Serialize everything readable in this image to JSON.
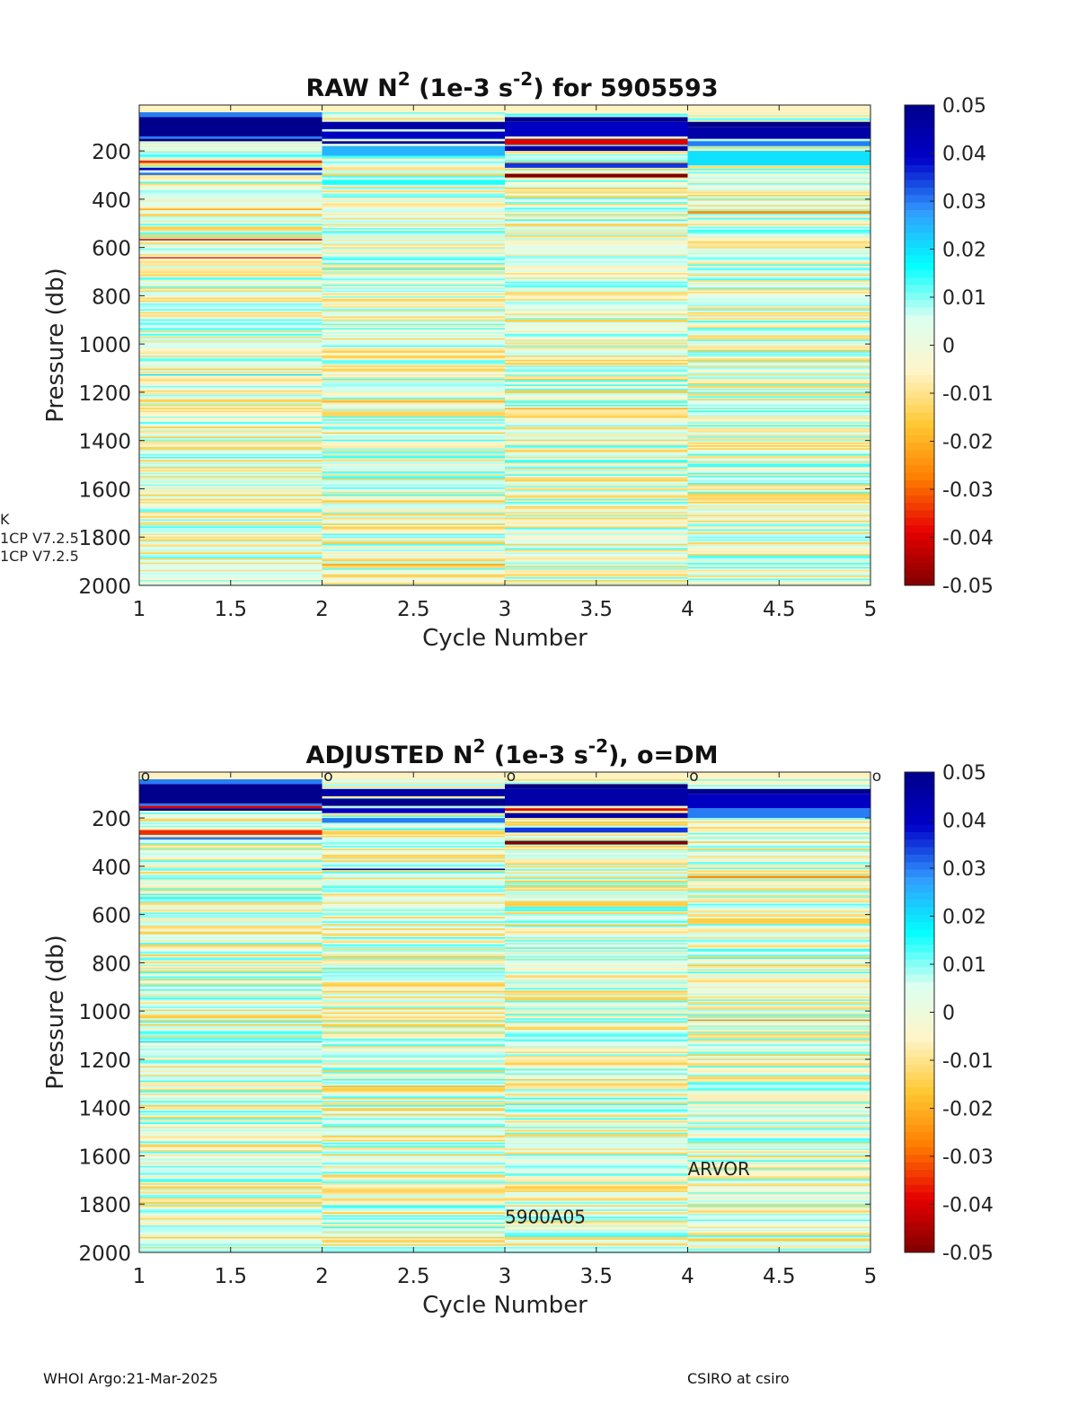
{
  "footer": {
    "left": "WHOI Argo:21-Mar-2025",
    "right": "CSIRO at csiro"
  },
  "side_labels": [
    "K",
    "1CP V7.2.5",
    "1CP V7.2.5"
  ],
  "colors": {
    "colormap": [
      "#800000",
      "#e60000",
      "#ff7d00",
      "#ffc832",
      "#fff5c8",
      "#dcfff0",
      "#00ffff",
      "#329bff",
      "#0000c8",
      "#00008c"
    ]
  },
  "chart_data": [
    {
      "type": "heatmap",
      "title_prefix": "RAW N",
      "title_sup": "2",
      "title_mid": " (1e-3 s",
      "title_sup2": "-2",
      "title_suffix": ") for 5905593",
      "xlabel": "Cycle Number",
      "ylabel": "Pressure (db)",
      "xlim": [
        1,
        5
      ],
      "ylim": [
        2000,
        10
      ],
      "y_reversed": true,
      "xticks": [
        "1",
        "1.5",
        "2",
        "2.5",
        "3",
        "3.5",
        "4",
        "4.5",
        "5"
      ],
      "yticks": [
        "200",
        "400",
        "600",
        "800",
        "1000",
        "1200",
        "1400",
        "1600",
        "1800",
        "2000"
      ],
      "colorbar": {
        "min": -0.05,
        "max": 0.05,
        "ticks": [
          "0.05",
          "0.04",
          "0.03",
          "0.02",
          "0.01",
          "0",
          "-0.01",
          "-0.02",
          "-0.03",
          "-0.04",
          "-0.05"
        ]
      },
      "cycles": [
        {
          "cycle": 1,
          "strong_layers": [
            [
              40,
              60,
              0.03
            ],
            [
              60,
              140,
              0.05
            ],
            [
              140,
              150,
              0.03
            ],
            [
              150,
              160,
              0.05
            ],
            [
              240,
              250,
              -0.035
            ],
            [
              270,
              280,
              0.04
            ],
            [
              290,
              300,
              0.03
            ],
            [
              440,
              445,
              -0.02
            ],
            [
              565,
              570,
              -0.04
            ],
            [
              640,
              645,
              -0.035
            ],
            [
              1125,
              1130,
              0.02
            ]
          ]
        },
        {
          "cycle": 2,
          "strong_layers": [
            [
              80,
              110,
              0.045
            ],
            [
              120,
              150,
              0.04
            ],
            [
              160,
              170,
              0.05
            ],
            [
              180,
              220,
              0.025
            ],
            [
              320,
              340,
              0.015
            ],
            [
              1235,
              1240,
              -0.02
            ],
            [
              1910,
              1920,
              -0.02
            ]
          ]
        },
        {
          "cycle": 3,
          "strong_layers": [
            [
              60,
              80,
              0.05
            ],
            [
              80,
              140,
              0.04
            ],
            [
              150,
              175,
              -0.04
            ],
            [
              180,
              200,
              0.045
            ],
            [
              250,
              270,
              0.035
            ],
            [
              295,
              310,
              -0.05
            ],
            [
              1265,
              1270,
              -0.02
            ]
          ]
        },
        {
          "cycle": 4,
          "strong_layers": [
            [
              80,
              100,
              0.05
            ],
            [
              100,
              150,
              0.045
            ],
            [
              160,
              180,
              0.03
            ],
            [
              200,
              260,
              0.02
            ],
            [
              450,
              460,
              -0.025
            ]
          ]
        }
      ],
      "dm_markers": []
    },
    {
      "type": "heatmap",
      "title_prefix": "ADJUSTED N",
      "title_sup": "2",
      "title_mid": " (1e-3 s",
      "title_sup2": "-2",
      "title_suffix": "), o=DM",
      "xlabel": "Cycle Number",
      "ylabel": "Pressure (db)",
      "xlim": [
        1,
        5
      ],
      "ylim": [
        2000,
        10
      ],
      "y_reversed": true,
      "xticks": [
        "1",
        "1.5",
        "2",
        "2.5",
        "3",
        "3.5",
        "4",
        "4.5",
        "5"
      ],
      "yticks": [
        "200",
        "400",
        "600",
        "800",
        "1000",
        "1200",
        "1400",
        "1600",
        "1800",
        "2000"
      ],
      "colorbar": {
        "min": -0.05,
        "max": 0.05,
        "ticks": [
          "0.05",
          "0.04",
          "0.03",
          "0.02",
          "0.01",
          "0",
          "-0.01",
          "-0.02",
          "-0.03",
          "-0.04",
          "-0.05"
        ]
      },
      "cycles": [
        {
          "cycle": 1,
          "strong_layers": [
            [
              40,
              60,
              0.03
            ],
            [
              60,
              140,
              0.05
            ],
            [
              140,
              150,
              0.03
            ],
            [
              150,
              160,
              -0.04
            ],
            [
              160,
              170,
              0.05
            ],
            [
              250,
              270,
              -0.035
            ],
            [
              280,
              290,
              0.03
            ],
            [
              1125,
              1130,
              0.02
            ]
          ]
        },
        {
          "cycle": 2,
          "strong_layers": [
            [
              80,
              110,
              0.045
            ],
            [
              120,
              150,
              0.05
            ],
            [
              160,
              180,
              0.04
            ],
            [
              200,
              220,
              0.03
            ],
            [
              410,
              415,
              0.05
            ],
            [
              1310,
              1315,
              -0.02
            ]
          ]
        },
        {
          "cycle": 3,
          "strong_layers": [
            [
              60,
              80,
              0.05
            ],
            [
              80,
              150,
              0.045
            ],
            [
              160,
              170,
              -0.04
            ],
            [
              180,
              200,
              0.045
            ],
            [
              240,
              260,
              0.035
            ],
            [
              295,
              310,
              -0.05
            ]
          ]
        },
        {
          "cycle": 4,
          "strong_layers": [
            [
              80,
              100,
              0.05
            ],
            [
              100,
              160,
              0.04
            ],
            [
              160,
              200,
              0.03
            ],
            [
              440,
              450,
              -0.025
            ],
            [
              1035,
              1040,
              -0.025
            ]
          ]
        }
      ],
      "dm_markers": [
        1,
        2,
        3,
        4,
        5
      ],
      "dm_marker_label": "o",
      "annotations": [
        {
          "text": "5900A05",
          "x": 3,
          "y": 1880
        },
        {
          "text": "ARVOR",
          "x": 4,
          "y": 1680
        }
      ]
    }
  ]
}
